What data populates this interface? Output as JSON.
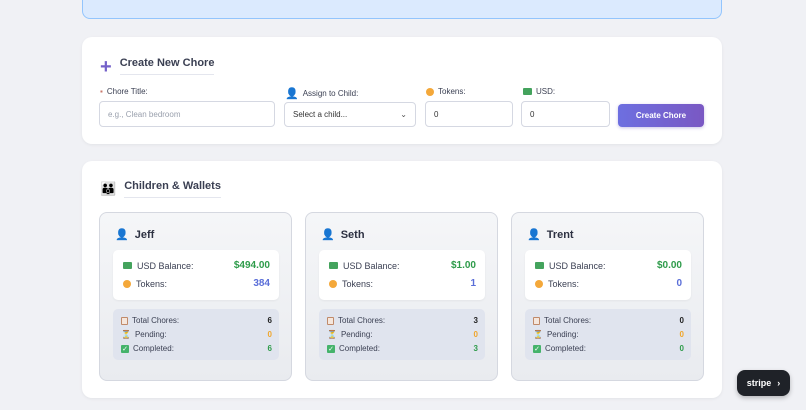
{
  "create_chore": {
    "title": "Create New Chore",
    "plus_icon": "plus-icon",
    "fields": {
      "chore_title": {
        "label": "Chore Title:",
        "placeholder": "e.g., Clean bedroom",
        "value": ""
      },
      "assign": {
        "label": "Assign to Child:",
        "selected": "Select a child..."
      },
      "tokens": {
        "label": "Tokens:",
        "value": "0"
      },
      "usd": {
        "label": "USD:",
        "value": "0"
      }
    },
    "button_label": "Create Chore"
  },
  "children_section": {
    "title": "Children & Wallets",
    "children": [
      {
        "name": "Jeff",
        "usd_label": "USD Balance:",
        "usd": "$494.00",
        "tokens_label": "Tokens:",
        "tokens": "384",
        "total_label": "Total Chores:",
        "total": "6",
        "pending_label": "Pending:",
        "pending": "0",
        "completed_label": "Completed:",
        "completed": "6"
      },
      {
        "name": "Seth",
        "usd_label": "USD Balance:",
        "usd": "$1.00",
        "tokens_label": "Tokens:",
        "tokens": "1",
        "total_label": "Total Chores:",
        "total": "3",
        "pending_label": "Pending:",
        "pending": "0",
        "completed_label": "Completed:",
        "completed": "3"
      },
      {
        "name": "Trent",
        "usd_label": "USD Balance:",
        "usd": "$0.00",
        "tokens_label": "Tokens:",
        "tokens": "0",
        "total_label": "Total Chores:",
        "total": "0",
        "pending_label": "Pending:",
        "pending": "0",
        "completed_label": "Completed:",
        "completed": "0"
      }
    ]
  },
  "stripe_badge": {
    "label": "stripe"
  },
  "colors": {
    "accent": "#7461c9",
    "usd": "#2e9b4a",
    "tokens": "#5a6ed8",
    "pending": "#f0a62b"
  }
}
